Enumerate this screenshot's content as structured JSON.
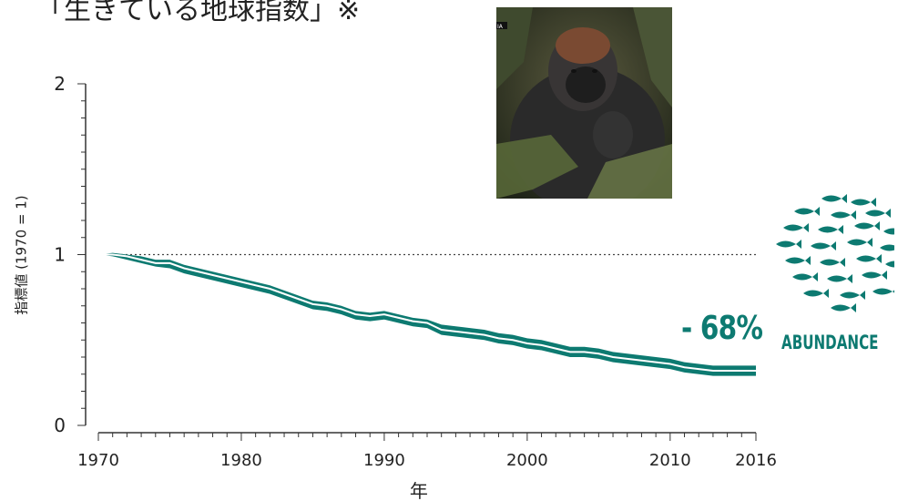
{
  "title": "「生きている地球指数」※",
  "percent_label": "- 68%",
  "icon_label": "ABUNDANCE",
  "photo_tag": "IA",
  "colors": {
    "band": "#0d7a71",
    "accent": "#0d7a71"
  },
  "icons": {
    "fish": "fish-school-icon",
    "photo": "gorilla-photo"
  },
  "chart_data": {
    "type": "line",
    "xlabel": "年",
    "ylabel": "指標値 (1970 = 1)",
    "xlim": [
      1970,
      2016
    ],
    "ylim": [
      0,
      2
    ],
    "xticks": [
      1970,
      1980,
      1990,
      2000,
      2010,
      2016
    ],
    "yticks": [
      0,
      1,
      2
    ],
    "reference_line": 1,
    "grid": false,
    "series": [
      {
        "x": [
          1970,
          1971,
          1972,
          1973,
          1974,
          1975,
          1976,
          1977,
          1978,
          1979,
          1980,
          1981,
          1982,
          1983,
          1984,
          1985,
          1986,
          1987,
          1988,
          1989,
          1990,
          1991,
          1992,
          1993,
          1994,
          1995,
          1996,
          1997,
          1998,
          1999,
          2000,
          2001,
          2002,
          2003,
          2004,
          2005,
          2006,
          2007,
          2008,
          2009,
          2010,
          2011,
          2012,
          2013,
          2014,
          2015,
          2016
        ],
        "y": [
          1.0,
          1.0,
          0.99,
          0.97,
          0.95,
          0.95,
          0.92,
          0.9,
          0.88,
          0.86,
          0.84,
          0.82,
          0.8,
          0.77,
          0.74,
          0.71,
          0.7,
          0.68,
          0.65,
          0.64,
          0.65,
          0.63,
          0.61,
          0.6,
          0.56,
          0.55,
          0.54,
          0.53,
          0.51,
          0.5,
          0.48,
          0.47,
          0.45,
          0.43,
          0.43,
          0.42,
          0.4,
          0.39,
          0.38,
          0.37,
          0.36,
          0.34,
          0.33,
          0.32,
          0.32,
          0.32,
          0.32
        ],
        "lower": [
          1.0,
          0.99,
          0.97,
          0.95,
          0.93,
          0.92,
          0.89,
          0.87,
          0.85,
          0.83,
          0.81,
          0.79,
          0.77,
          0.74,
          0.71,
          0.68,
          0.67,
          0.65,
          0.62,
          0.61,
          0.62,
          0.6,
          0.58,
          0.57,
          0.53,
          0.52,
          0.51,
          0.5,
          0.48,
          0.47,
          0.45,
          0.44,
          0.42,
          0.4,
          0.4,
          0.39,
          0.37,
          0.36,
          0.35,
          0.34,
          0.33,
          0.31,
          0.3,
          0.29,
          0.29,
          0.29,
          0.29
        ],
        "upper": [
          1.0,
          1.01,
          1.0,
          0.99,
          0.97,
          0.97,
          0.94,
          0.92,
          0.9,
          0.88,
          0.86,
          0.84,
          0.82,
          0.79,
          0.76,
          0.73,
          0.72,
          0.7,
          0.67,
          0.66,
          0.67,
          0.65,
          0.63,
          0.62,
          0.59,
          0.58,
          0.57,
          0.56,
          0.54,
          0.53,
          0.51,
          0.5,
          0.48,
          0.46,
          0.46,
          0.45,
          0.43,
          0.42,
          0.41,
          0.4,
          0.39,
          0.37,
          0.36,
          0.35,
          0.35,
          0.35,
          0.35
        ]
      }
    ]
  }
}
